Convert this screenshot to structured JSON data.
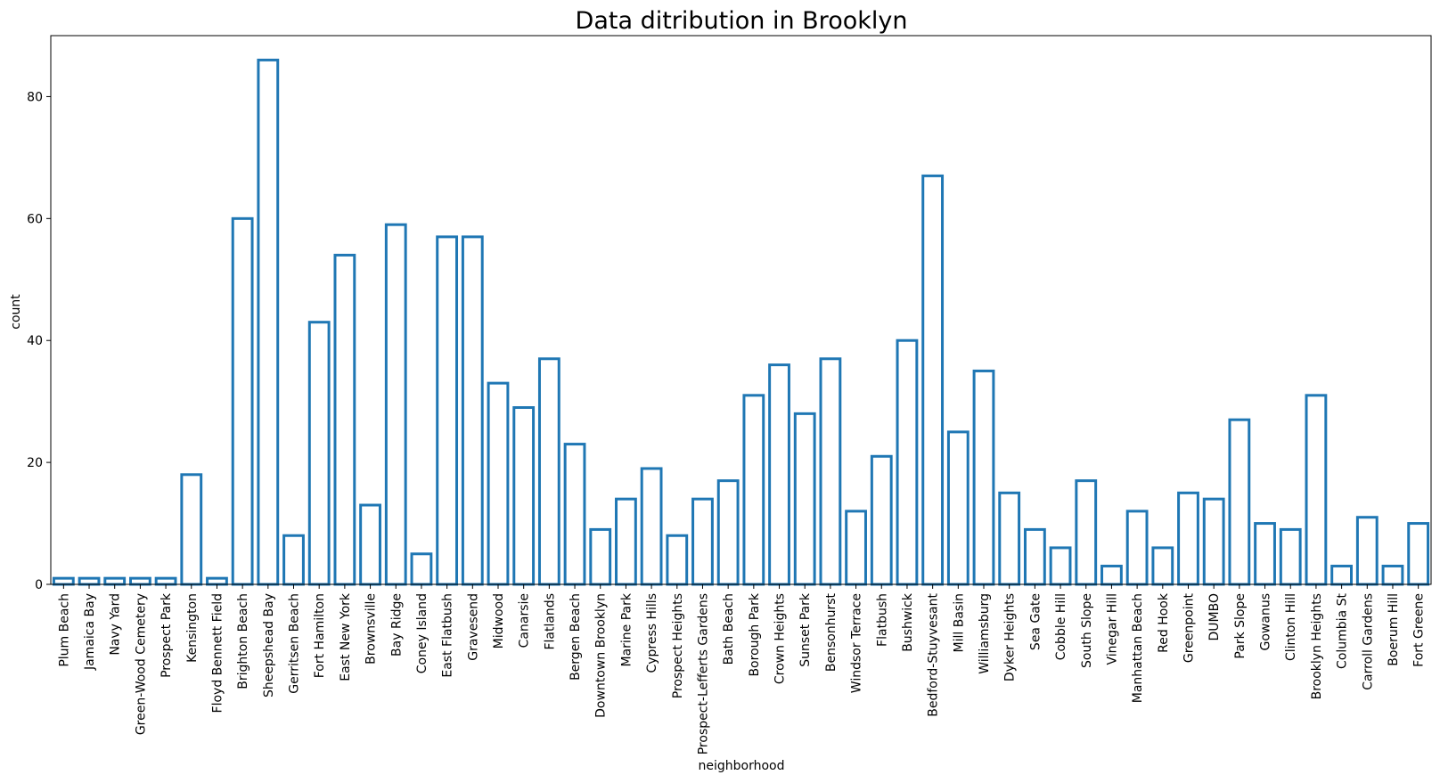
{
  "chart_data": {
    "type": "bar",
    "title": "Data ditribution in Brooklyn",
    "xlabel": "neighborhood",
    "ylabel": "count",
    "ylim": [
      0,
      90
    ],
    "yticks": [
      0,
      20,
      40,
      60,
      80
    ],
    "grid": false,
    "legend": "none",
    "bar_style": "outline",
    "colors": {
      "bar_edge": "#1f77b4",
      "bar_fill": "#ffffff",
      "axes": "#000000"
    },
    "categories": [
      "Plum Beach",
      "Jamaica Bay",
      "Navy Yard",
      "Green-Wood Cemetery",
      "Prospect Park",
      "Kensington",
      "Floyd Bennett Field",
      "Brighton Beach",
      "Sheepshead Bay",
      "Gerritsen Beach",
      "Fort Hamilton",
      "East New York",
      "Brownsville",
      "Bay Ridge",
      "Coney Island",
      "East Flatbush",
      "Gravesend",
      "Midwood",
      "Canarsie",
      "Flatlands",
      "Bergen Beach",
      "Downtown Brooklyn",
      "Marine Park",
      "Cypress Hills",
      "Prospect Heights",
      "Prospect-Lefferts Gardens",
      "Bath Beach",
      "Borough Park",
      "Crown Heights",
      "Sunset Park",
      "Bensonhurst",
      "Windsor Terrace",
      "Flatbush",
      "Bushwick",
      "Bedford-Stuyvesant",
      "Mill Basin",
      "Williamsburg",
      "Dyker Heights",
      "Sea Gate",
      "Cobble Hill",
      "South Slope",
      "Vinegar Hill",
      "Manhattan Beach",
      "Red Hook",
      "Greenpoint",
      "DUMBO",
      "Park Slope",
      "Gowanus",
      "Clinton Hill",
      "Brooklyn Heights",
      "Columbia St",
      "Carroll Gardens",
      "Boerum Hill",
      "Fort Greene"
    ],
    "values": [
      1,
      1,
      1,
      1,
      1,
      18,
      1,
      60,
      86,
      8,
      43,
      54,
      13,
      59,
      5,
      57,
      57,
      33,
      29,
      37,
      23,
      9,
      14,
      19,
      8,
      14,
      17,
      31,
      36,
      28,
      37,
      12,
      21,
      40,
      67,
      25,
      35,
      15,
      9,
      6,
      17,
      3,
      12,
      6,
      15,
      14,
      27,
      10,
      9,
      31,
      3,
      11,
      3,
      10
    ]
  }
}
